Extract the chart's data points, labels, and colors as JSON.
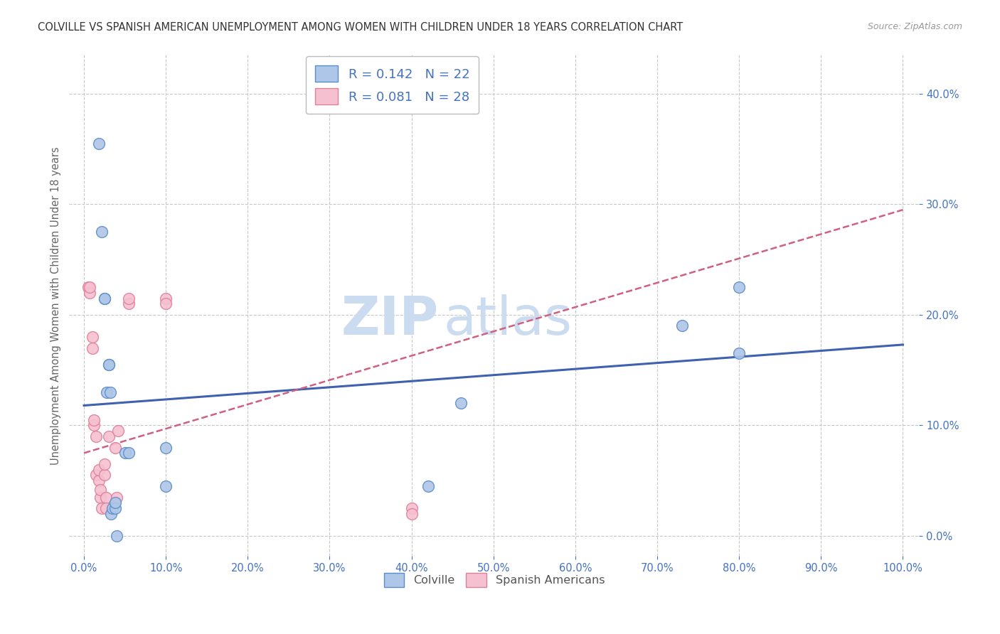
{
  "title": "COLVILLE VS SPANISH AMERICAN UNEMPLOYMENT AMONG WOMEN WITH CHILDREN UNDER 18 YEARS CORRELATION CHART",
  "source": "Source: ZipAtlas.com",
  "ylabel": "Unemployment Among Women with Children Under 18 years",
  "background_color": "#ffffff",
  "colville_color": "#aec6e8",
  "colville_edge_color": "#5b8dc8",
  "spanish_color": "#f5c0d0",
  "spanish_edge_color": "#e0809a",
  "colville_R": "0.142",
  "colville_N": "22",
  "spanish_R": "0.081",
  "spanish_N": "28",
  "colville_points_x": [
    0.018,
    0.022,
    0.025,
    0.025,
    0.028,
    0.03,
    0.03,
    0.032,
    0.033,
    0.035,
    0.038,
    0.038,
    0.04,
    0.05,
    0.055,
    0.1,
    0.1,
    0.42,
    0.46,
    0.73,
    0.8,
    0.8
  ],
  "colville_points_y": [
    0.355,
    0.275,
    0.215,
    0.215,
    0.13,
    0.155,
    0.155,
    0.13,
    0.02,
    0.025,
    0.025,
    0.03,
    0.0,
    0.075,
    0.075,
    0.08,
    0.045,
    0.045,
    0.12,
    0.19,
    0.165,
    0.225
  ],
  "spanish_points_x": [
    0.005,
    0.007,
    0.007,
    0.01,
    0.01,
    0.012,
    0.012,
    0.015,
    0.015,
    0.018,
    0.018,
    0.02,
    0.02,
    0.022,
    0.025,
    0.025,
    0.027,
    0.027,
    0.03,
    0.038,
    0.04,
    0.042,
    0.055,
    0.055,
    0.1,
    0.1,
    0.4,
    0.4
  ],
  "spanish_points_y": [
    0.225,
    0.22,
    0.225,
    0.18,
    0.17,
    0.1,
    0.105,
    0.09,
    0.055,
    0.05,
    0.06,
    0.035,
    0.042,
    0.025,
    0.055,
    0.065,
    0.035,
    0.025,
    0.09,
    0.08,
    0.035,
    0.095,
    0.21,
    0.215,
    0.215,
    0.21,
    0.025,
    0.02
  ],
  "xlim": [
    -0.018,
    1.02
  ],
  "ylim": [
    -0.018,
    0.435
  ],
  "xticks": [
    0.0,
    0.1,
    0.2,
    0.3,
    0.4,
    0.5,
    0.6,
    0.7,
    0.8,
    0.9,
    1.0
  ],
  "yticks": [
    0.0,
    0.1,
    0.2,
    0.3,
    0.4
  ],
  "ytick_labels": [
    "0.0%",
    "10.0%",
    "20.0%",
    "30.0%",
    "40.0%"
  ],
  "xtick_labels": [
    "0.0%",
    "10.0%",
    "20.0%",
    "30.0%",
    "40.0%",
    "50.0%",
    "60.0%",
    "70.0%",
    "80.0%",
    "90.0%",
    "100.0%"
  ],
  "tick_color": "#4472c4",
  "grid_color": "#c8c8c8",
  "watermark_zip": "ZIP",
  "watermark_atlas": "atlas",
  "watermark_color": "#ccdcf0",
  "colville_line_color": "#4060b0",
  "spanish_line_color": "#d06080",
  "colville_line_intercept": 0.118,
  "colville_line_slope": 0.055,
  "spanish_line_intercept": 0.075,
  "spanish_line_slope": 0.22,
  "marker_size": 130
}
